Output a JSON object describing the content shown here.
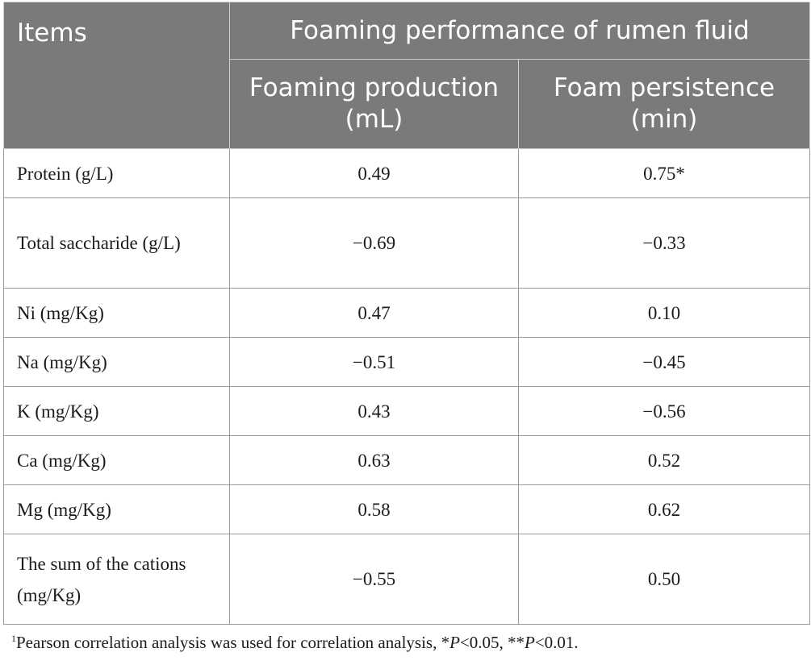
{
  "table": {
    "header": {
      "items": "Items",
      "group": "Foaming performance of rumen fluid",
      "col1": "Foaming production (mL)",
      "col2": "Foam persistence (min)"
    },
    "rows": [
      {
        "label": "Protein (g/L)",
        "v1": "0.49",
        "v2": "0.75*"
      },
      {
        "label": "Total saccharide (g/L)",
        "v1": "−0.69",
        "v2": "−0.33"
      },
      {
        "label": "Ni (mg/Kg)",
        "v1": "0.47",
        "v2": "0.10"
      },
      {
        "label": "Na (mg/Kg)",
        "v1": "−0.51",
        "v2": "−0.45"
      },
      {
        "label": "K (mg/Kg)",
        "v1": "0.43",
        "v2": "−0.56"
      },
      {
        "label": "Ca (mg/Kg)",
        "v1": "0.63",
        "v2": "0.52"
      },
      {
        "label": "Mg (mg/Kg)",
        "v1": "0.58",
        "v2": "0.62"
      },
      {
        "label": "The sum of the cations (mg/Kg)",
        "v1": "−0.55",
        "v2": "0.50"
      }
    ]
  },
  "footnote": {
    "marker": "1",
    "text_a": "Pearson correlation analysis was used for correlation analysis, *",
    "p1": "P",
    "text_b": "<0.05, **",
    "p2": "P",
    "text_c": "<0.01."
  }
}
